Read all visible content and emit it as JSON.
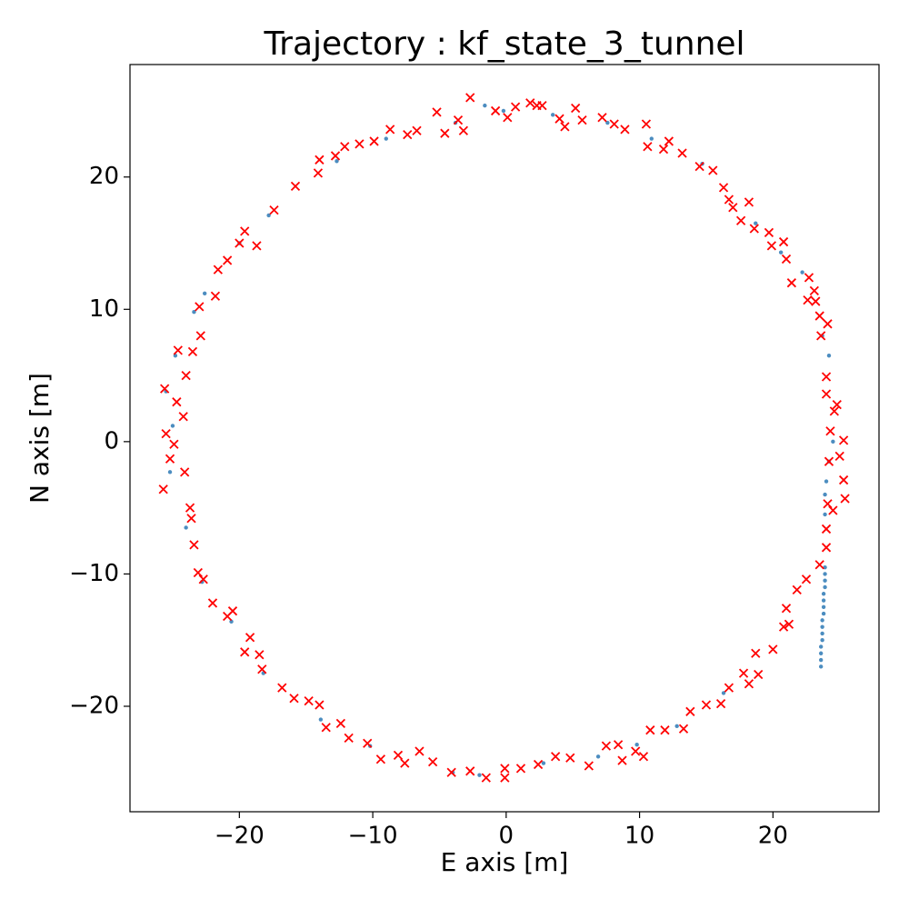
{
  "chart_data": {
    "type": "scatter",
    "title": "Trajectory : kf_state_3_tunnel",
    "x_label": "E axis [m]",
    "y_label": "N axis [m]",
    "xlim": [
      -28.2,
      27.95
    ],
    "ylim": [
      -27.97,
      28.5
    ],
    "xticks": [
      {
        "value": -20,
        "label": "−20"
      },
      {
        "value": -10,
        "label": "−10"
      },
      0,
      10,
      20
    ],
    "yticks": [
      {
        "value": -20,
        "label": "−20"
      },
      {
        "value": -10,
        "label": "−10"
      },
      0,
      10,
      20
    ],
    "grid": false,
    "series": [
      {
        "color": "#4c8dc0",
        "marker": "dot",
        "x": [
          -1.6,
          -0.2,
          3.5,
          7.6,
          10.9,
          14.7,
          18.7,
          20.6,
          22.2,
          23.7,
          24.2,
          24.5,
          24.2,
          24.0,
          23.9,
          23.9,
          -3.8,
          -9.0,
          -12.7,
          -17.8,
          -20.0,
          -22.6,
          -23.4,
          -24.8,
          -25.5,
          -25.0,
          -25.2,
          -24.0,
          -22.8,
          -20.6,
          -18.2,
          -13.9,
          -10.2,
          -4.0,
          -2.0,
          2.8,
          6.9,
          9.8,
          12.8,
          16.3,
          23.6,
          23.6,
          23.6,
          23.6,
          23.7,
          23.7,
          23.7,
          23.7,
          23.8,
          23.8,
          23.8,
          23.8,
          23.9,
          23.9,
          23.9,
          23.9
        ],
        "y": [
          25.4,
          25.0,
          24.7,
          24.1,
          22.9,
          21.0,
          16.5,
          14.3,
          12.8,
          8.0,
          6.5,
          0.0,
          -1.5,
          -3.0,
          -4.0,
          -5.5,
          24.1,
          22.9,
          21.2,
          17.1,
          15.0,
          11.2,
          9.8,
          6.5,
          3.8,
          1.2,
          -2.3,
          -6.5,
          -10.6,
          -13.6,
          -17.5,
          -21.0,
          -23.0,
          -25.0,
          -25.2,
          -24.3,
          -23.8,
          -22.9,
          -21.5,
          -19.0,
          -17.0,
          -16.5,
          -16.0,
          -15.5,
          -15.0,
          -14.5,
          -14.0,
          -13.5,
          -13.0,
          -12.5,
          -12.0,
          -11.5,
          -11.0,
          -10.5,
          -10.0,
          -9.5
        ]
      },
      {
        "color": "#ff0000",
        "marker": "x",
        "x": [
          -2.7,
          1.8,
          -0.8,
          -5.2,
          -3.6,
          -6.7,
          -7.4,
          -8.7,
          -9.9,
          -11.0,
          -12.1,
          -12.8,
          -14.0,
          -14.1,
          -15.8,
          -17.4,
          -18.7,
          -19.6,
          -20.0,
          -20.9,
          -21.6,
          -21.8,
          -23.0,
          -22.9,
          -23.5,
          -24.6,
          -24.0,
          -24.7,
          -25.6,
          -24.2,
          -25.5,
          -24.9,
          -25.2,
          -24.1,
          -25.7,
          -23.7,
          -23.6,
          -23.4,
          -23.1,
          -22.7,
          -22.0,
          -20.9,
          -20.5,
          -19.2,
          -19.6,
          -18.5,
          -18.3,
          -16.8,
          -15.9,
          -14.8,
          -14.0,
          -13.5,
          -12.4,
          -11.8,
          -10.4,
          -9.4,
          -8.1,
          -7.6,
          -6.5,
          -5.5,
          -4.1,
          -2.7,
          -1.5,
          -0.1,
          -0.1,
          1.1,
          2.4,
          3.7,
          4.8,
          6.2,
          7.5,
          8.4,
          8.7,
          9.7,
          10.3,
          10.8,
          11.9,
          13.3,
          13.8,
          15.0,
          16.1,
          16.7,
          17.8,
          18.2,
          18.9,
          18.7,
          20.0,
          20.8,
          21.2,
          21.0,
          21.8,
          22.5,
          23.5,
          24.0,
          24.0,
          24.1,
          24.5,
          25.4,
          25.3,
          25.0,
          24.2,
          25.3,
          24.3,
          24.6,
          24.8,
          24.0,
          24.0,
          24.1,
          23.6,
          23.5,
          23.2,
          22.6,
          22.7,
          23.1,
          21.4,
          21.0,
          20.8,
          19.9,
          19.7,
          18.6,
          18.2,
          17.6,
          17.0,
          16.7,
          16.3,
          15.5,
          14.5,
          13.2,
          12.2,
          11.8,
          10.6,
          10.5,
          8.9,
          8.1,
          7.2,
          5.7,
          4.4,
          4.0,
          5.2,
          2.3,
          2.7,
          0.7,
          0.1,
          -3.2,
          -4.6
        ],
        "y": [
          26.0,
          25.6,
          25.0,
          24.9,
          24.3,
          23.5,
          23.2,
          23.6,
          22.7,
          22.5,
          22.3,
          21.6,
          21.3,
          20.3,
          19.3,
          17.5,
          14.8,
          15.9,
          15.0,
          13.7,
          13.0,
          11.0,
          10.2,
          8.0,
          6.8,
          6.9,
          5.0,
          3.0,
          4.0,
          1.9,
          0.6,
          -0.2,
          -1.3,
          -2.3,
          -3.6,
          -5.0,
          -5.8,
          -7.8,
          -9.9,
          -10.4,
          -12.2,
          -13.2,
          -12.8,
          -14.8,
          -15.9,
          -16.1,
          -17.2,
          -18.6,
          -19.4,
          -19.6,
          -19.9,
          -21.6,
          -21.3,
          -22.4,
          -22.8,
          -24.0,
          -23.7,
          -24.3,
          -23.4,
          -24.2,
          -25.0,
          -24.9,
          -25.4,
          -24.7,
          -25.4,
          -24.7,
          -24.4,
          -23.8,
          -23.9,
          -24.5,
          -23.0,
          -22.9,
          -24.1,
          -23.4,
          -23.8,
          -21.8,
          -21.8,
          -21.7,
          -20.4,
          -19.9,
          -19.8,
          -18.6,
          -17.5,
          -18.3,
          -17.6,
          -16.0,
          -15.7,
          -14.0,
          -13.8,
          -12.6,
          -11.2,
          -10.4,
          -9.3,
          -8.0,
          -6.6,
          -4.7,
          -5.2,
          -4.3,
          -2.9,
          -1.1,
          -1.5,
          0.1,
          0.8,
          2.3,
          2.8,
          3.6,
          4.9,
          8.9,
          8.0,
          9.5,
          10.6,
          10.7,
          12.4,
          11.4,
          12.0,
          13.8,
          15.1,
          14.8,
          15.8,
          16.1,
          18.1,
          16.7,
          17.7,
          18.3,
          19.2,
          20.5,
          20.8,
          21.8,
          22.7,
          22.1,
          22.3,
          24.0,
          23.6,
          24.0,
          24.5,
          24.3,
          23.8,
          24.4,
          25.2,
          25.4,
          25.4,
          25.3,
          24.5,
          23.5,
          23.3
        ]
      }
    ]
  }
}
